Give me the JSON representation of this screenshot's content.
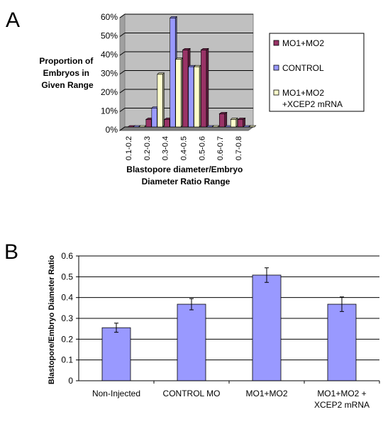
{
  "panels": {
    "a": {
      "letter": "A"
    },
    "b": {
      "letter": "B"
    }
  },
  "colors": {
    "mo": "#993366",
    "control": "#9999ff",
    "rescue": "#ffffcc",
    "plot_bg_a": "#c0c0c0",
    "plot_bg_b": "#ffffff",
    "bar_b": "#9999ff"
  },
  "chart_data": [
    {
      "type": "bar",
      "panel": "A",
      "ylabel": "Proportion of Embryos in Given Range",
      "ylabel_lines": [
        "Proportion of",
        "Embryos in",
        "Given Range"
      ],
      "xlabel": "Blastopore diameter/Embryo Diameter Ratio Range",
      "xlabel_lines": [
        "Blastopore diameter/Embryo",
        "Diameter Ratio Range"
      ],
      "categories": [
        "0.1-0.2",
        "0.2-0.3",
        "0.3-0.4",
        "0.4-0.5",
        "0.5-0.6",
        "0.6-0.7",
        "0.7-0.8"
      ],
      "yticks": [
        "0%",
        "10%",
        "20%",
        "30%",
        "40%",
        "50%",
        "60%"
      ],
      "ylim": [
        0,
        60
      ],
      "three_d": true,
      "grid": true,
      "legend_position": "right",
      "series": [
        {
          "name": "MO1+MO2",
          "legend_lines": [
            "MO1+MO2"
          ],
          "color": "#993366",
          "values": [
            0,
            4,
            4,
            41,
            41,
            7,
            4
          ]
        },
        {
          "name": "CONTROL",
          "legend_lines": [
            "CONTROL"
          ],
          "color": "#9999ff",
          "values": [
            0,
            10,
            58,
            32,
            0,
            0,
            0
          ]
        },
        {
          "name": "MO1+MO2 +XCEP2 mRNA",
          "legend_lines": [
            "MO1+MO2",
            "+XCEP2 mRNA"
          ],
          "color": "#ffffcc",
          "values": [
            0,
            28,
            36,
            32,
            0,
            4,
            0
          ]
        }
      ]
    },
    {
      "type": "bar",
      "panel": "B",
      "ylabel": "Blastopore/Embryo Diameter Ratio",
      "xlabel": "",
      "categories": [
        "Non-Injected",
        "CONTROL MO",
        "MO1+MO2",
        "MO1+MO2 + XCEP2 mRNA"
      ],
      "category_lines": [
        [
          "Non-Injected"
        ],
        [
          "CONTROL MO"
        ],
        [
          "MO1+MO2"
        ],
        [
          "MO1+MO2 +",
          "XCEP2 mRNA"
        ]
      ],
      "values": [
        0.255,
        0.368,
        0.508,
        0.368
      ],
      "errors": [
        0.022,
        0.027,
        0.035,
        0.035
      ],
      "yticks": [
        "0",
        "0.1",
        "0.2",
        "0.3",
        "0.4",
        "0.5",
        "0.6"
      ],
      "ylim": [
        0,
        0.6
      ],
      "grid": true,
      "legend_position": "none",
      "color": "#9999ff"
    }
  ]
}
